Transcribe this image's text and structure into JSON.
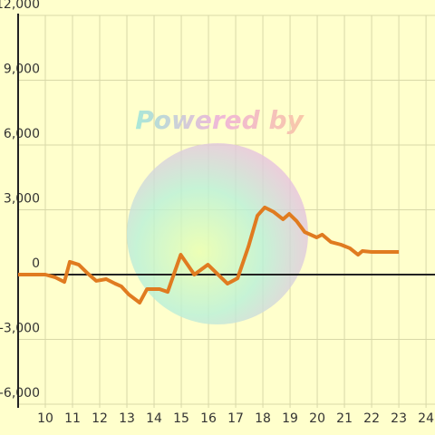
{
  "chart_data": {
    "type": "line",
    "watermark": "Powered by",
    "x": [
      9,
      10,
      10.37,
      10.7,
      10.9,
      11.23,
      11.57,
      11.87,
      12.24,
      12.57,
      12.8,
      13.07,
      13.47,
      13.74,
      14.2,
      14.5,
      14.98,
      15.48,
      15.98,
      16.7,
      17.07,
      17.47,
      17.8,
      18.07,
      18.4,
      18.74,
      18.97,
      19.24,
      19.54,
      19.98,
      20.18,
      20.5,
      20.86,
      21.2,
      21.5,
      21.66,
      22,
      23
    ],
    "series": [
      {
        "color": "#e07b20",
        "values": [
          0,
          0,
          -130,
          -340,
          590,
          460,
          40,
          -290,
          -210,
          -420,
          -550,
          -920,
          -1300,
          -670,
          -670,
          -800,
          920,
          0,
          460,
          -420,
          -170,
          1300,
          2730,
          3110,
          2900,
          2560,
          2810,
          2480,
          1970,
          1720,
          1850,
          1510,
          1390,
          1220,
          920,
          1090,
          1050,
          1050
        ]
      }
    ],
    "xlim": [
      9,
      24.33
    ],
    "xticks": [
      10,
      11,
      12,
      13,
      14,
      15,
      16,
      17,
      18,
      19,
      20,
      21,
      22,
      23,
      24
    ],
    "ylim": [
      -6000,
      12000
    ],
    "yticks": [
      {
        "value": -6000,
        "label": "-6,000"
      },
      {
        "value": -3000,
        "label": "-3,000"
      },
      0,
      {
        "value": 3000,
        "label": "3,000"
      },
      {
        "value": 6000,
        "label": "6,000"
      },
      {
        "value": 9000,
        "label": "9,000"
      },
      {
        "value": 12000,
        "label": "12,000"
      }
    ],
    "grid": true
  }
}
